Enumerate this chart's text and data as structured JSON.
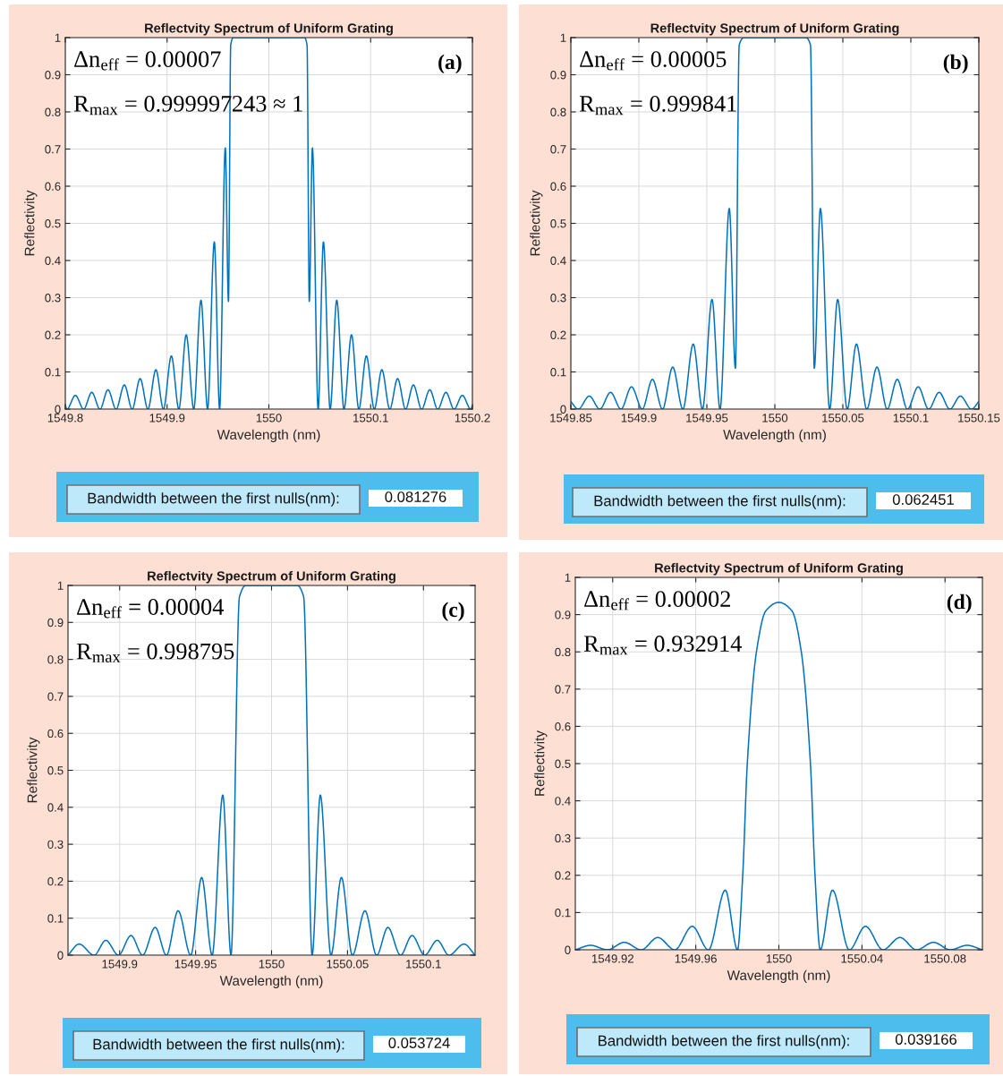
{
  "chart_data": [
    {
      "type": "line",
      "title": "Reflectvity Spectrum of Uniform Grating",
      "xlabel": "Wavelength (nm)",
      "ylabel": "Reflectivity",
      "annotations": [
        "Δn$_{eff}$ = 0.00007",
        "R$_{max}$ = 0.999997243 ≈ 1",
        "(a)",
        "Bandwidth between the first nulls(nm):",
        "0.081276"
      ],
      "xlim": [
        1549.8,
        1550.2
      ],
      "ylim": [
        0,
        1
      ],
      "xticks": [
        1549.8,
        1549.9,
        1550,
        1550.1,
        1550.2
      ],
      "yticks": [
        0,
        0.1,
        0.2,
        0.3,
        0.4,
        0.5,
        0.6,
        0.7,
        0.8,
        0.9,
        1
      ],
      "grid": true,
      "series": [
        {
          "color": "#0072bd",
          "x": [
            1549.8,
            1549.8016,
            1549.8099,
            1549.818,
            1549.826,
            1549.8341,
            1549.8419,
            1549.8499,
            1549.858,
            1549.8657,
            1549.8735,
            1549.8812,
            1549.889,
            1549.8964,
            1549.9042,
            1549.9116,
            1549.9188,
            1549.9262,
            1549.9333,
            1549.9398,
            1549.9464,
            1549.9516,
            1549.9572,
            1549.9603,
            1549.9625,
            1549.965,
            1550.035,
            1550.0375,
            1550.0397,
            1550.0428,
            1550.0484,
            1550.0536,
            1550.0602,
            1550.0667,
            1550.0738,
            1550.0812,
            1550.0884,
            1550.0958,
            1550.1036,
            1550.111,
            1550.1188,
            1550.1265,
            1550.1343,
            1550.142,
            1550.1501,
            1550.1581,
            1550.1659,
            1550.174,
            1550.182,
            1550.1901,
            1550.1984,
            1550.2
          ],
          "values": [
            0.01,
            0,
            0.037,
            0,
            0.045,
            0,
            0.052,
            0,
            0.065,
            0,
            0.082,
            0,
            0.106,
            0,
            0.143,
            0,
            0.2,
            0,
            0.293,
            0,
            0.45,
            0,
            0.703,
            0.29,
            0.98,
            1,
            1,
            0.98,
            0.29,
            0.703,
            0,
            0.45,
            0,
            0.293,
            0,
            0.2,
            0,
            0.143,
            0,
            0.106,
            0,
            0.082,
            0,
            0.065,
            0,
            0.052,
            0,
            0.045,
            0,
            0.037,
            0,
            0.01
          ]
        }
      ]
    },
    {
      "type": "line",
      "title": "Reflectvity Spectrum of Uniform Grating",
      "xlabel": "Wavelength (nm)",
      "ylabel": "Reflectivity",
      "annotations": [
        "Δn$_{eff}$ = 0.00005",
        "R$_{max}$ = 0.999841",
        "(b)",
        "Bandwidth between the first nulls(nm):",
        "0.062451"
      ],
      "xlim": [
        1549.85,
        1550.15
      ],
      "ylim": [
        0,
        1
      ],
      "xticks": [
        1549.85,
        1549.9,
        1549.95,
        1550,
        1550.05,
        1550.1,
        1550.15
      ],
      "yticks": [
        0,
        0.1,
        0.2,
        0.3,
        0.4,
        0.5,
        0.6,
        0.7,
        0.8,
        0.9,
        1
      ],
      "grid": true,
      "series": [
        {
          "color": "#0072bd",
          "x": [
            1549.85,
            1549.8554,
            1549.8636,
            1549.8713,
            1549.8792,
            1549.8869,
            1549.8946,
            1549.9025,
            1549.91,
            1549.9174,
            1549.9249,
            1549.9324,
            1549.94,
            1549.9468,
            1549.9538,
            1549.9597,
            1549.9665,
            1549.971,
            1549.9738,
            1549.9771,
            1550.0229,
            1550.0262,
            1550.029,
            1550.0335,
            1550.0403,
            1550.0462,
            1550.0532,
            1550.06,
            1550.0676,
            1550.0751,
            1550.0826,
            1550.09,
            1550.0975,
            1550.1054,
            1550.1131,
            1550.1208,
            1550.1287,
            1550.1364,
            1550.1446,
            1550.15
          ],
          "values": [
            0.02,
            0,
            0.035,
            0,
            0.045,
            0,
            0.06,
            0,
            0.08,
            0,
            0.113,
            0,
            0.175,
            0,
            0.295,
            0,
            0.54,
            0.11,
            0.98,
            1,
            1,
            0.98,
            0.11,
            0.54,
            0,
            0.295,
            0,
            0.175,
            0,
            0.113,
            0,
            0.08,
            0,
            0.06,
            0,
            0.045,
            0,
            0.035,
            0,
            0.02
          ]
        }
      ]
    },
    {
      "type": "line",
      "title": "Reflectvity Spectrum of Uniform Grating",
      "xlabel": "Wavelength (nm)",
      "ylabel": "Reflectivity",
      "annotations": [
        "Δn$_{eff}$ = 0.00004",
        "R$_{max}$ = 0.998795",
        "(c)",
        "Bandwidth between the first nulls(nm):",
        "0.053724"
      ],
      "xlim": [
        1549.866,
        1550.134
      ],
      "ylim": [
        0,
        1
      ],
      "xticks": [
        1549.9,
        1549.95,
        1550,
        1550.05,
        1550.1
      ],
      "yticks": [
        0,
        0.1,
        0.2,
        0.3,
        0.4,
        0.5,
        0.6,
        0.7,
        0.8,
        0.9,
        1
      ],
      "grid": true,
      "series": [
        {
          "color": "#0072bd",
          "x": [
            1549.866,
            1549.8733,
            1549.8832,
            1549.8909,
            1549.8992,
            1549.9075,
            1549.9151,
            1549.9234,
            1549.9308,
            1549.9385,
            1549.9468,
            1549.954,
            1549.9609,
            1549.9679,
            1549.9733,
            1549.9789,
            1549.983,
            1550.017,
            1550.0211,
            1550.0267,
            1550.0321,
            1550.0391,
            1550.046,
            1550.0532,
            1550.0615,
            1550.0692,
            1550.0766,
            1550.0849,
            1550.0925,
            1550.1008,
            1550.1091,
            1550.1168,
            1550.1267,
            1550.134
          ],
          "values": [
            0,
            0.03,
            0,
            0.04,
            0,
            0.053,
            0,
            0.075,
            0,
            0.12,
            0,
            0.21,
            0,
            0.433,
            0,
            0.97,
            1,
            1,
            0.97,
            0,
            0.433,
            0,
            0.21,
            0,
            0.12,
            0,
            0.075,
            0,
            0.053,
            0,
            0.04,
            0,
            0.03,
            0
          ]
        }
      ]
    },
    {
      "type": "line",
      "title": "Reflectvity Spectrum of Uniform Grating",
      "xlabel": "Wavelength (nm)",
      "ylabel": "Reflectivity",
      "annotations": [
        "Δn$_{eff}$ = 0.00002",
        "R$_{max}$ = 0.932914",
        "(d)",
        "Bandwidth between the first nulls(nm):",
        "0.039166"
      ],
      "xlim": [
        1549.902,
        1550.098
      ],
      "ylim": [
        0,
        1
      ],
      "xticks": [
        1549.92,
        1549.96,
        1550,
        1550.04,
        1550.08
      ],
      "yticks": [
        0,
        0.1,
        0.2,
        0.3,
        0.4,
        0.5,
        0.6,
        0.7,
        0.8,
        0.9,
        1
      ],
      "grid": true,
      "series": [
        {
          "color": "#0072bd",
          "x": [
            1549.902,
            1549.9094,
            1549.9174,
            1549.9256,
            1549.9337,
            1549.9417,
            1549.9499,
            1549.9583,
            1549.9661,
            1549.9742,
            1549.9801,
            1549.9826,
            1549.9848,
            1549.9892,
            1549.9937,
            1550,
            1550.0063,
            1550.0108,
            1550.0152,
            1550.0174,
            1550.0199,
            1550.0258,
            1550.0339,
            1550.0417,
            1550.0501,
            1550.0583,
            1550.0663,
            1550.0744,
            1550.0826,
            1550.0906,
            1550.098
          ],
          "values": [
            0,
            0.012,
            0,
            0.02,
            0,
            0.033,
            0,
            0.063,
            0,
            0.16,
            0,
            0.2,
            0.5,
            0.8,
            0.91,
            0.933,
            0.91,
            0.8,
            0.5,
            0.2,
            0,
            0.16,
            0,
            0.063,
            0,
            0.033,
            0,
            0.02,
            0,
            0.012,
            0
          ]
        }
      ]
    }
  ]
}
